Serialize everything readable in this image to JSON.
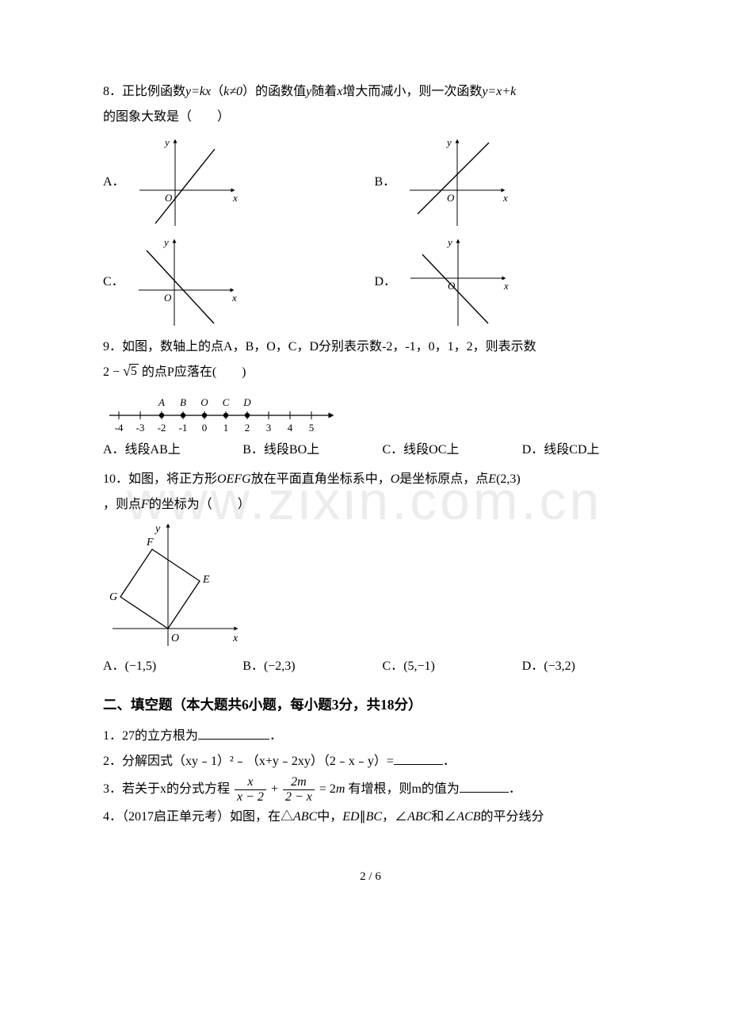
{
  "page": {
    "number": "2 / 6"
  },
  "watermark": {
    "main": "www.zixin.com.cn",
    "sub": ""
  },
  "q8": {
    "number": "8．",
    "text_before": "正比例函数",
    "fx1": "y=kx",
    "paren": "（",
    "neq": "k≠0",
    "paren2": "）",
    "text_mid": "的函数值",
    "yvar": "y",
    "text_mid2": "随着",
    "xvar": "x",
    "text_mid3": "增大而减小，则一次函数",
    "fx2": "y=x+k",
    "text_after": "的图象大致是（　　）",
    "options": {
      "A": {
        "label": "A．",
        "graph": {
          "type": "linear-graph",
          "slope": "pos",
          "yint": "neg",
          "axis_color": "#000000",
          "line_color": "#000000"
        }
      },
      "B": {
        "label": "B．",
        "graph": {
          "type": "linear-graph",
          "slope": "pos",
          "yint": "pos",
          "axis_color": "#000000",
          "line_color": "#000000"
        }
      },
      "C": {
        "label": "C．",
        "graph": {
          "type": "linear-graph",
          "slope": "neg",
          "yint": "pos",
          "axis_color": "#000000",
          "line_color": "#000000"
        }
      },
      "D": {
        "label": "D．",
        "graph": {
          "type": "linear-graph",
          "slope": "neg",
          "yint": "neg",
          "axis_color": "#000000",
          "line_color": "#000000"
        }
      }
    }
  },
  "q9": {
    "number": "9．",
    "text": "如图，数轴上的点A，B，O，C，D分别表示数-2，-1，0，1，2，则表示数",
    "expr_pre": "2 − ",
    "expr_rad": "5",
    "expr_post": " 的点P应落在(　　)",
    "numberline": {
      "type": "numberline",
      "ticks": [
        -4,
        -3,
        -2,
        -1,
        0,
        1,
        2,
        3,
        4,
        5
      ],
      "top_labels": [
        {
          "x": -2,
          "text": "A"
        },
        {
          "x": -1,
          "text": "B"
        },
        {
          "x": 0,
          "text": "O"
        },
        {
          "x": 1,
          "text": "C"
        },
        {
          "x": 2,
          "text": "D"
        }
      ],
      "dots": [
        -2,
        -1,
        0,
        1,
        2
      ],
      "axis_color": "#000000",
      "tick_fontsize": 13
    },
    "options": {
      "A": "A．线段AB上",
      "B": "B．线段BO上",
      "C": "C．线段OC上",
      "D": "D．线段CD上"
    }
  },
  "q10": {
    "number": "10．",
    "text1": "如图，将正方形",
    "oefg": "OEFG",
    "text2": "放在平面直角坐标系中，",
    "ovar": "O",
    "text3": "是坐标原点，点",
    "evar": "E",
    "coord_e": "(2,3)",
    "text4": "，则点",
    "fvar": "F",
    "text5": "的坐标为（　　）",
    "figure": {
      "type": "square-on-axes",
      "points": {
        "O": [
          0,
          0
        ],
        "E": [
          2,
          3
        ],
        "F": [
          -1,
          5
        ],
        "G": [
          -3,
          2
        ]
      },
      "axis_color": "#000000",
      "line_color": "#000000",
      "label_fontsize": 14
    },
    "options": {
      "A": {
        "label": "A．",
        "val": "(−1,5)"
      },
      "B": {
        "label": "B．",
        "val": "(−2,3)"
      },
      "C": {
        "label": "C．",
        "val": "(5,−1)"
      },
      "D": {
        "label": "D．",
        "val": "(−3,2)"
      }
    }
  },
  "section2_heading": "二、填空题（本大题共6小题，每小题3分，共18分）",
  "f1": {
    "number": "1．",
    "text": "27的立方根为",
    "blank_width": 90,
    "suffix": "．"
  },
  "f2": {
    "number": "2．",
    "text": "分解因式（xy﹣1）²﹣（x+y﹣2xy）（2﹣x﹣y）=",
    "blank_width": 62,
    "suffix": "．"
  },
  "f3": {
    "number": "3．",
    "text_pre": "若关于x的分式方程",
    "eq": {
      "t1_num": "x",
      "t1_den": "x − 2",
      "plus": "+",
      "t2_num": "2m",
      "t2_den": "2 − x",
      "eq": "= 2",
      "mvar": "m"
    },
    "text_post": "有增根，则m的值为",
    "blank_width": 62,
    "suffix": "．"
  },
  "f4": {
    "number": "4．",
    "text": "（2017启正单元考）如图，在△",
    "abc": "ABC",
    "text2": "中，",
    "ed": "ED",
    "par": "∥",
    "bc": "BC",
    "text3": "，∠",
    "abc2": "ABC",
    "text4": "和∠",
    "acb": "ACB",
    "text5": "的平分线分"
  },
  "colors": {
    "text": "#000000",
    "bg": "#ffffff",
    "watermark": "#ececec"
  }
}
